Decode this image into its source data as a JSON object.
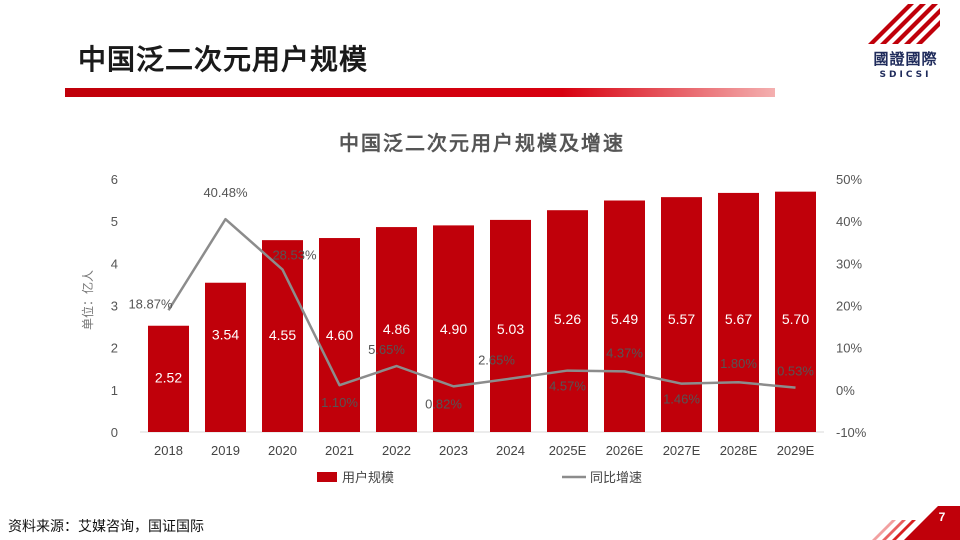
{
  "page": {
    "title": "中国泛二次元用户规模",
    "source": "资料来源：艾媒咨询，国证国际",
    "page_number": "7"
  },
  "logo": {
    "name_cn": "國證國際",
    "name_en": "SDICSI",
    "brand_color": "#c0000a"
  },
  "chart_data": {
    "type": "bar",
    "title": "中国泛二次元用户规模及增速",
    "categories": [
      "2018",
      "2019",
      "2020",
      "2021",
      "2022",
      "2023",
      "2024",
      "2025E",
      "2026E",
      "2027E",
      "2028E",
      "2029E"
    ],
    "ylabel": "单位：亿人",
    "ylim": [
      0,
      6
    ],
    "yticks": [
      "0",
      "1",
      "2",
      "3",
      "4",
      "5",
      "6"
    ],
    "y2lim": [
      -10,
      50
    ],
    "y2ticks": [
      "-10%",
      "0%",
      "10%",
      "20%",
      "30%",
      "40%",
      "50%"
    ],
    "series": [
      {
        "name": "用户规模",
        "type": "bar",
        "color": "#c0000a",
        "values": [
          2.52,
          3.54,
          4.55,
          4.6,
          4.86,
          4.9,
          5.03,
          5.26,
          5.49,
          5.57,
          5.67,
          5.7
        ],
        "labels": [
          "2.52",
          "3.54",
          "4.55",
          "4.60",
          "4.86",
          "4.90",
          "5.03",
          "5.26",
          "5.49",
          "5.57",
          "5.67",
          "5.70"
        ]
      },
      {
        "name": "同比增速",
        "type": "line",
        "axis": "right",
        "color": "#8c8c8c",
        "values": [
          18.87,
          40.48,
          28.53,
          1.1,
          5.65,
          0.82,
          2.65,
          4.57,
          4.37,
          1.46,
          1.8,
          0.53
        ],
        "labels": [
          "18.87%",
          "40.48%",
          "28.53%",
          "1.10%",
          "5.65%",
          "0.82%",
          "2.65%",
          "4.57%",
          "4.37%",
          "1.46%",
          "1.80%",
          "0.53%"
        ]
      }
    ],
    "legend_position": "bottom",
    "grid": false
  }
}
